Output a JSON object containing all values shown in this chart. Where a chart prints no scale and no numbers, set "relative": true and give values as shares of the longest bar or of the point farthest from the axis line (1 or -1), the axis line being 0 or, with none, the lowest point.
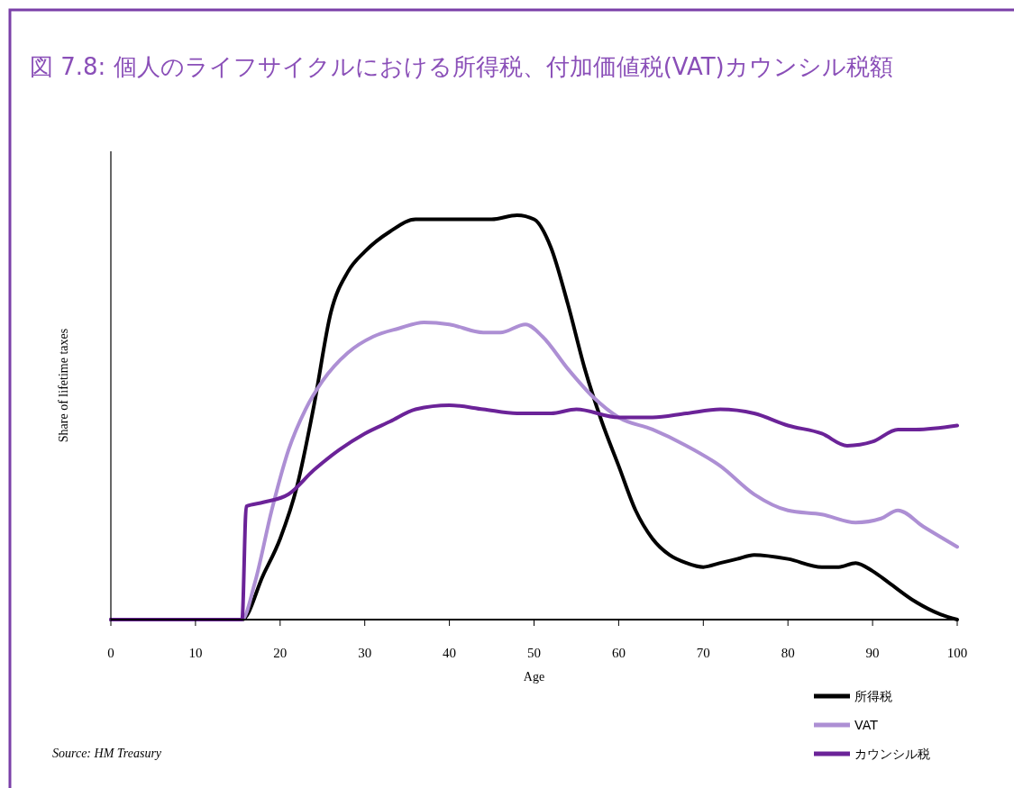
{
  "chart_data": {
    "type": "line",
    "title": "図 7.8: 個人のライフサイクルにおける所得税、付加価値税(VAT)カウンシル税額",
    "xlabel": "Age",
    "ylabel": "Share of lifetime taxes",
    "relative": true,
    "xlim": [
      0,
      100
    ],
    "xticks": [
      0,
      10,
      20,
      30,
      40,
      50,
      60,
      70,
      80,
      90,
      100
    ],
    "legend": "bottom right",
    "grid": false,
    "annotations": [
      "Source: HM Treasury"
    ],
    "series": [
      {
        "name": "所得税",
        "color": "#000000",
        "x": [
          0,
          15.5,
          18,
          20,
          22,
          24,
          26,
          28,
          30,
          33,
          36,
          40,
          45,
          48,
          50,
          52,
          54,
          56,
          58,
          60,
          62,
          64,
          66,
          68,
          70,
          72,
          74,
          76,
          80,
          84,
          86,
          88,
          90,
          92,
          95,
          98,
          100
        ],
        "values": [
          0,
          0,
          0.11,
          0.2,
          0.33,
          0.53,
          0.76,
          0.86,
          0.91,
          0.96,
          0.99,
          0.99,
          0.99,
          1,
          0.99,
          0.92,
          0.78,
          0.62,
          0.49,
          0.38,
          0.27,
          0.2,
          0.16,
          0.14,
          0.13,
          0.14,
          0.15,
          0.16,
          0.15,
          0.13,
          0.13,
          0.14,
          0.12,
          0.09,
          0.045,
          0.013,
          0
        ]
      },
      {
        "name": "VAT",
        "color": "#ad8fd4",
        "x": [
          0,
          15.5,
          17,
          19,
          21,
          23,
          25,
          28,
          31,
          34,
          37,
          40,
          44,
          46,
          49,
          51,
          54,
          57,
          60,
          64,
          68,
          72,
          76,
          80,
          84,
          88,
          91,
          93,
          96,
          100
        ],
        "values": [
          0,
          0,
          0.09,
          0.27,
          0.42,
          0.52,
          0.59,
          0.66,
          0.7,
          0.72,
          0.735,
          0.73,
          0.71,
          0.71,
          0.73,
          0.7,
          0.62,
          0.55,
          0.5,
          0.47,
          0.43,
          0.38,
          0.31,
          0.27,
          0.26,
          0.24,
          0.25,
          0.27,
          0.23,
          0.18
        ]
      },
      {
        "name": "カウンシル税",
        "color": "#6b2398",
        "x": [
          0,
          15.5,
          16,
          18,
          21,
          24,
          27,
          30,
          33,
          36,
          40,
          44,
          48,
          52,
          55,
          60,
          64,
          68,
          72,
          76,
          80,
          84,
          87,
          90,
          93,
          95,
          100
        ],
        "values": [
          0,
          0,
          0.28,
          0.29,
          0.31,
          0.37,
          0.42,
          0.46,
          0.49,
          0.52,
          0.53,
          0.52,
          0.51,
          0.51,
          0.52,
          0.5,
          0.5,
          0.51,
          0.52,
          0.51,
          0.48,
          0.46,
          0.43,
          0.44,
          0.47,
          0.47,
          0.48
        ]
      }
    ]
  }
}
